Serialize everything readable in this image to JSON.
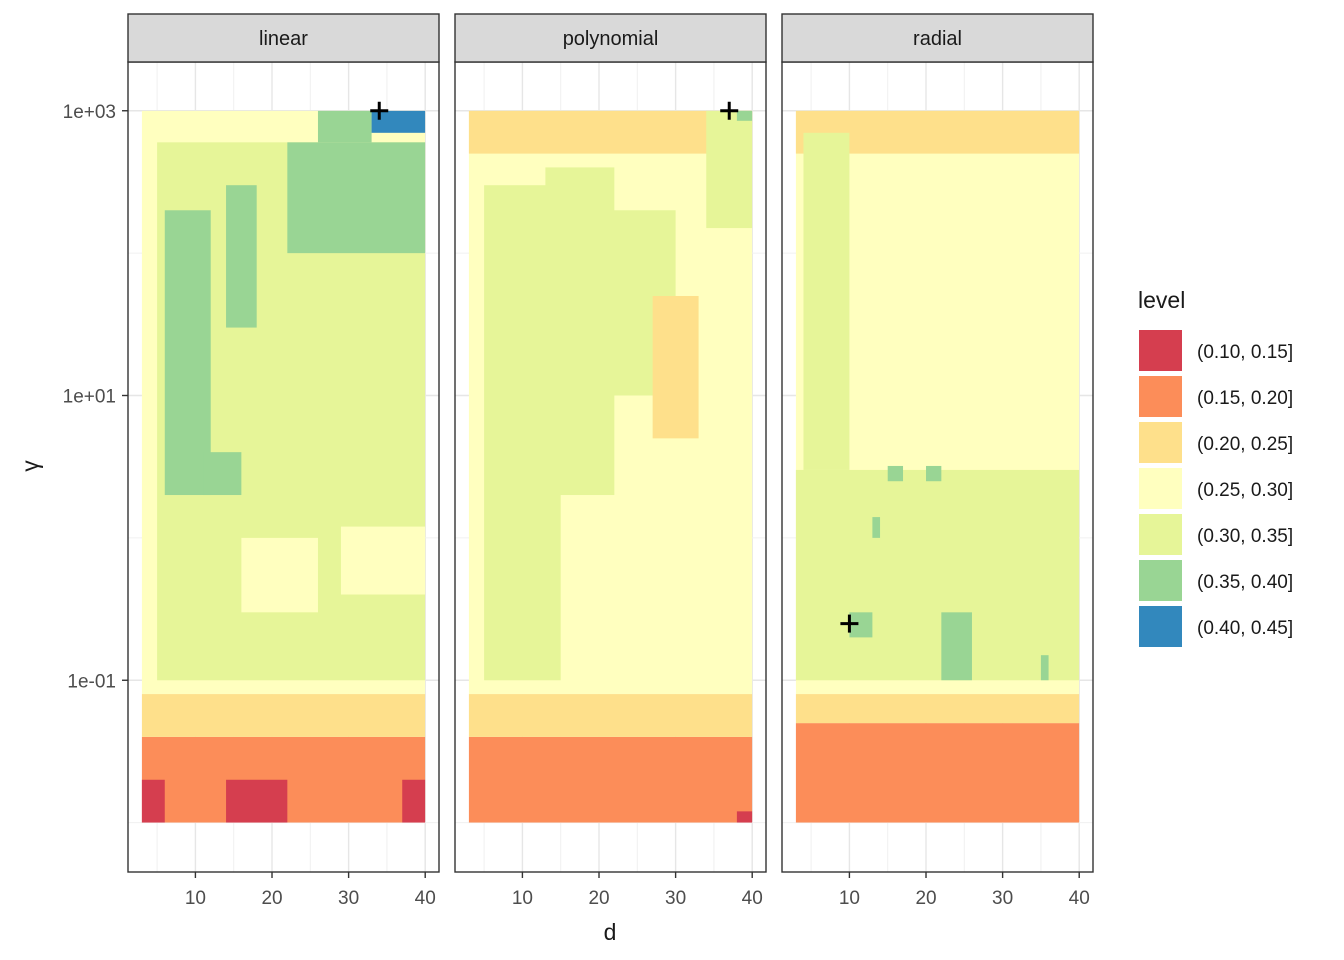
{
  "chart_data": {
    "type": "heatmap",
    "subtype": "filled-contour, faceted",
    "title": "",
    "xlabel": "d",
    "ylabel": "γ",
    "x_scale": "linear",
    "y_scale": "log10",
    "xlim": [
      3,
      40
    ],
    "ylim": [
      0.01,
      1000
    ],
    "x_ticks": [
      10,
      20,
      30,
      40
    ],
    "x_tick_labels": [
      "10",
      "20",
      "30",
      "40"
    ],
    "y_ticks": [
      0.1,
      10,
      1000
    ],
    "y_tick_labels": [
      "1e-01",
      "1e+01",
      "1e+03"
    ],
    "grid": true,
    "legend": {
      "title": "level",
      "placement": "right",
      "entries": [
        {
          "label": "(0.10, 0.15]",
          "color": "#D53E4F"
        },
        {
          "label": "(0.15, 0.20]",
          "color": "#FC8D59"
        },
        {
          "label": "(0.20, 0.25]",
          "color": "#FEE08B"
        },
        {
          "label": "(0.25, 0.30]",
          "color": "#FFFFBF"
        },
        {
          "label": "(0.30, 0.35]",
          "color": "#E6F598"
        },
        {
          "label": "(0.35, 0.40]",
          "color": "#99D594"
        },
        {
          "label": "(0.40, 0.45]",
          "color": "#3288BD"
        }
      ]
    },
    "panels": [
      {
        "name": "linear",
        "optimum": {
          "d": 34,
          "gamma": 1000
        },
        "regions": [
          {
            "level": 1,
            "x": [
              3,
              40
            ],
            "y": [
              0.01,
              0.04
            ]
          },
          {
            "level": 0,
            "x": [
              3,
              6
            ],
            "y": [
              0.01,
              0.02
            ]
          },
          {
            "level": 0,
            "x": [
              14,
              22
            ],
            "y": [
              0.01,
              0.02
            ]
          },
          {
            "level": 0,
            "x": [
              37,
              40
            ],
            "y": [
              0.01,
              0.02
            ]
          },
          {
            "level": 2,
            "x": [
              3,
              40
            ],
            "y": [
              0.04,
              0.08
            ]
          },
          {
            "level": 3,
            "x": [
              3,
              40
            ],
            "y": [
              0.08,
              1000
            ]
          },
          {
            "level": 4,
            "x": [
              5,
              40
            ],
            "y": [
              0.1,
              600
            ]
          },
          {
            "level": 3,
            "x": [
              16,
              26
            ],
            "y": [
              0.3,
              1.0
            ]
          },
          {
            "level": 3,
            "x": [
              29,
              40
            ],
            "y": [
              0.4,
              1.2
            ]
          },
          {
            "level": 5,
            "x": [
              6,
              12
            ],
            "y": [
              2,
              200
            ]
          },
          {
            "level": 5,
            "x": [
              11,
              16
            ],
            "y": [
              2,
              4
            ]
          },
          {
            "level": 5,
            "x": [
              14,
              18
            ],
            "y": [
              30,
              300
            ]
          },
          {
            "level": 5,
            "x": [
              22,
              40
            ],
            "y": [
              100,
              600
            ]
          },
          {
            "level": 5,
            "x": [
              26,
              33
            ],
            "y": [
              600,
              1000
            ]
          },
          {
            "level": 6,
            "x": [
              33,
              40
            ],
            "y": [
              700,
              1000
            ]
          }
        ]
      },
      {
        "name": "polynomial",
        "optimum": {
          "d": 37,
          "gamma": 1000
        },
        "regions": [
          {
            "level": 1,
            "x": [
              3,
              40
            ],
            "y": [
              0.01,
              0.04
            ]
          },
          {
            "level": 0,
            "x": [
              38,
              40
            ],
            "y": [
              0.01,
              0.012
            ]
          },
          {
            "level": 2,
            "x": [
              3,
              40
            ],
            "y": [
              0.04,
              0.08
            ]
          },
          {
            "level": 3,
            "x": [
              3,
              40
            ],
            "y": [
              0.08,
              1000
            ]
          },
          {
            "level": 2,
            "x": [
              3,
              40
            ],
            "y": [
              500,
              1000
            ]
          },
          {
            "level": 4,
            "x": [
              5,
              15
            ],
            "y": [
              0.1,
              300
            ]
          },
          {
            "level": 4,
            "x": [
              13,
              22
            ],
            "y": [
              2,
              400
            ]
          },
          {
            "level": 4,
            "x": [
              20,
              30
            ],
            "y": [
              10,
              200
            ]
          },
          {
            "level": 4,
            "x": [
              34,
              40
            ],
            "y": [
              150,
              1000
            ]
          },
          {
            "level": 5,
            "x": [
              38,
              40
            ],
            "y": [
              850,
              1000
            ]
          },
          {
            "level": 2,
            "x": [
              27,
              33
            ],
            "y": [
              5,
              50
            ]
          }
        ]
      },
      {
        "name": "radial",
        "optimum": {
          "d": 10,
          "gamma": 0.25
        },
        "regions": [
          {
            "level": 1,
            "x": [
              3,
              40
            ],
            "y": [
              0.01,
              0.05
            ]
          },
          {
            "level": 2,
            "x": [
              3,
              40
            ],
            "y": [
              0.05,
              0.08
            ]
          },
          {
            "level": 3,
            "x": [
              3,
              40
            ],
            "y": [
              0.08,
              1000
            ]
          },
          {
            "level": 2,
            "x": [
              3,
              40
            ],
            "y": [
              500,
              1000
            ]
          },
          {
            "level": 4,
            "x": [
              3,
              40
            ],
            "y": [
              0.1,
              3
            ]
          },
          {
            "level": 4,
            "x": [
              4,
              10
            ],
            "y": [
              3,
              700
            ]
          },
          {
            "level": 5,
            "x": [
              10,
              13
            ],
            "y": [
              0.2,
              0.3
            ]
          },
          {
            "level": 5,
            "x": [
              22,
              26
            ],
            "y": [
              0.1,
              0.3
            ]
          },
          {
            "level": 5,
            "x": [
              15,
              17
            ],
            "y": [
              2.5,
              3.2
            ]
          },
          {
            "level": 5,
            "x": [
              20,
              22
            ],
            "y": [
              2.5,
              3.2
            ]
          },
          {
            "level": 5,
            "x": [
              13,
              14
            ],
            "y": [
              1,
              1.4
            ]
          },
          {
            "level": 5,
            "x": [
              35,
              36
            ],
            "y": [
              0.1,
              0.15
            ]
          }
        ]
      }
    ]
  }
}
